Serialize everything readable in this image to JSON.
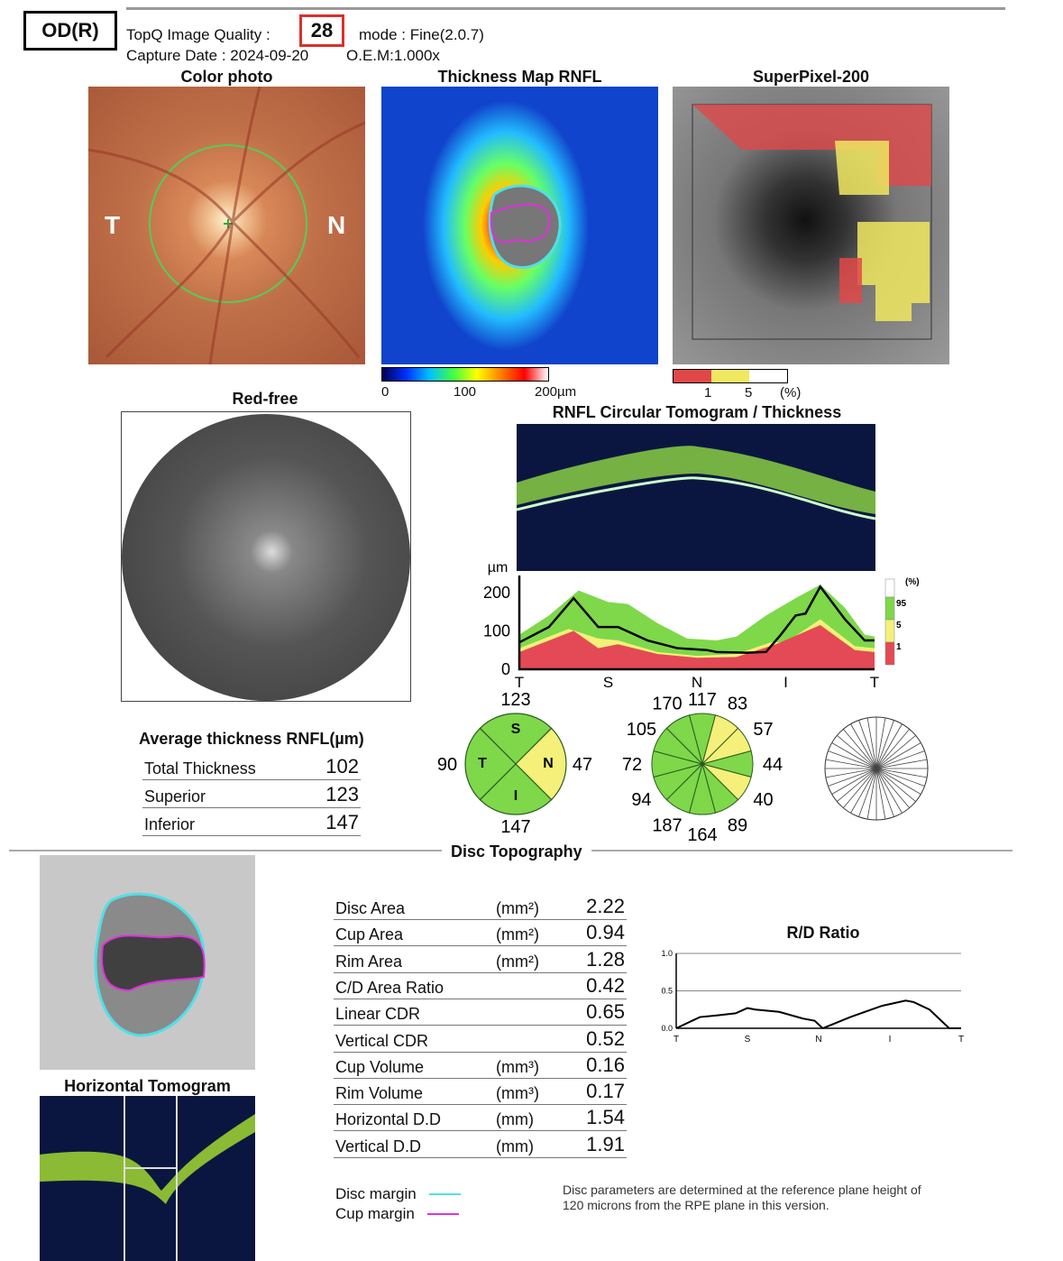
{
  "header": {
    "eye": "OD(R)",
    "quality_label": "TopQ Image Quality :",
    "quality_value": "28",
    "mode": "mode : Fine(2.0.7)",
    "capture_date": "Capture Date : 2024-09-20",
    "oem": "O.E.M:1.000x"
  },
  "panels": {
    "color_photo": "Color photo",
    "color_t": "T",
    "color_n": "N",
    "thickness_map": "Thickness Map RNFL",
    "superpixel": "SuperPixel-200",
    "red_free": "Red-free",
    "circular": "RNFL Circular Tomogram / Thickness",
    "horizontal": "Horizontal Tomogram"
  },
  "thickness_scale": {
    "labels": [
      "0",
      "100",
      "200µm"
    ]
  },
  "superpixel_scale": {
    "labels": [
      "1",
      "5",
      "(%)"
    ],
    "colors": [
      "#e04848",
      "#f0e860",
      "#ffffff"
    ]
  },
  "avg": {
    "title": "Average thickness RNFL(µm)",
    "rows": [
      {
        "label": "Total Thickness",
        "value": "102"
      },
      {
        "label": "Superior",
        "value": "123"
      },
      {
        "label": "Inferior",
        "value": "147"
      }
    ]
  },
  "quadrant": {
    "labels": [
      "S",
      "T",
      "N",
      "I"
    ],
    "values": {
      "S": "123",
      "T": "90",
      "N": "47",
      "I": "147"
    },
    "colors": {
      "S": "green",
      "T": "green",
      "N": "yellow",
      "I": "green"
    }
  },
  "clock": {
    "values": [
      "117",
      "83",
      "57",
      "44",
      "40",
      "89",
      "164",
      "187",
      "94",
      "72",
      "105",
      "170"
    ],
    "colors": [
      "green",
      "yellow",
      "yellow",
      "green",
      "yellow",
      "green",
      "green",
      "green",
      "green",
      "green",
      "green",
      "green"
    ]
  },
  "colors": {
    "green": "#7ed84a",
    "yellow": "#f4f07a",
    "red": "#e44a55",
    "cyan": "#4fe0e8",
    "magenta": "#e030e0"
  },
  "section_title": "Disc Topography",
  "disc_table": [
    {
      "label": "Disc Area",
      "unit": "(mm²)",
      "value": "2.22"
    },
    {
      "label": "Cup Area",
      "unit": "(mm²)",
      "value": "0.94"
    },
    {
      "label": "Rim Area",
      "unit": "(mm²)",
      "value": "1.28"
    },
    {
      "label": "C/D Area Ratio",
      "unit": "",
      "value": "0.42"
    },
    {
      "label": "Linear CDR",
      "unit": "",
      "value": "0.65"
    },
    {
      "label": "Vertical CDR",
      "unit": "",
      "value": "0.52"
    },
    {
      "label": "Cup Volume",
      "unit": "(mm³)",
      "value": "0.16"
    },
    {
      "label": "Rim Volume",
      "unit": "(mm³)",
      "value": "0.17"
    },
    {
      "label": "Horizontal D.D",
      "unit": "(mm)",
      "value": "1.54"
    },
    {
      "label": "Vertical D.D",
      "unit": "(mm)",
      "value": "1.91"
    }
  ],
  "legend": {
    "disc": "Disc margin",
    "cup": "Cup margin"
  },
  "note": {
    "line1": "Disc parameters are determined at the reference plane height of",
    "line2": "120 microns from the RPE plane in this version."
  },
  "chart_data": [
    {
      "type": "area",
      "ylabel": "µm",
      "ylim": [
        0,
        230
      ],
      "yticks": [
        "0",
        "100",
        "200"
      ],
      "xticks": [
        "T",
        "S",
        "N",
        "I",
        "T"
      ],
      "xlim": [
        0,
        360
      ],
      "legend": {
        "title": "(%)",
        "labels": [
          "95",
          "5",
          "1"
        ]
      },
      "series": [
        {
          "role": "upper_95",
          "color": "#7ed84a",
          "x": [
            0,
            30,
            60,
            90,
            110,
            140,
            170,
            200,
            220,
            250,
            280,
            305,
            330,
            350,
            360
          ],
          "y": [
            90,
            140,
            205,
            175,
            170,
            120,
            80,
            75,
            85,
            140,
            185,
            220,
            160,
            90,
            85
          ]
        },
        {
          "role": "band_5",
          "color": "#f4f07a",
          "x": [
            0,
            50,
            80,
            100,
            140,
            180,
            220,
            255,
            270,
            305,
            340,
            360
          ],
          "y": [
            55,
            105,
            80,
            75,
            45,
            35,
            40,
            70,
            70,
            130,
            60,
            55
          ]
        },
        {
          "role": "band_1",
          "color": "#e44a55",
          "x": [
            0,
            55,
            80,
            100,
            140,
            180,
            220,
            260,
            305,
            340,
            360
          ],
          "y": [
            45,
            100,
            55,
            65,
            40,
            30,
            32,
            65,
            115,
            50,
            45
          ]
        },
        {
          "role": "patient",
          "color": "#000000",
          "x": [
            0,
            30,
            55,
            80,
            100,
            130,
            160,
            190,
            200,
            230,
            250,
            265,
            280,
            290,
            305,
            330,
            350,
            360
          ],
          "y": [
            70,
            110,
            185,
            110,
            110,
            75,
            55,
            50,
            45,
            43,
            45,
            90,
            140,
            145,
            215,
            130,
            75,
            75
          ]
        }
      ]
    },
    {
      "type": "line",
      "title": "R/D Ratio",
      "ylim": [
        0,
        1
      ],
      "yticks": [
        "0.0",
        "0.5",
        "1.0"
      ],
      "xticks": [
        "T",
        "S",
        "N",
        "I",
        "T"
      ],
      "xlim": [
        0,
        360
      ],
      "x": [
        0,
        20,
        30,
        50,
        75,
        90,
        100,
        130,
        160,
        175,
        185,
        190,
        220,
        260,
        290,
        300,
        320,
        340,
        345,
        360
      ],
      "y": [
        0,
        0.1,
        0.15,
        0.17,
        0.2,
        0.27,
        0.25,
        0.22,
        0.13,
        0.1,
        0,
        0.02,
        0.15,
        0.3,
        0.37,
        0.35,
        0.25,
        0.05,
        0,
        0
      ]
    }
  ]
}
